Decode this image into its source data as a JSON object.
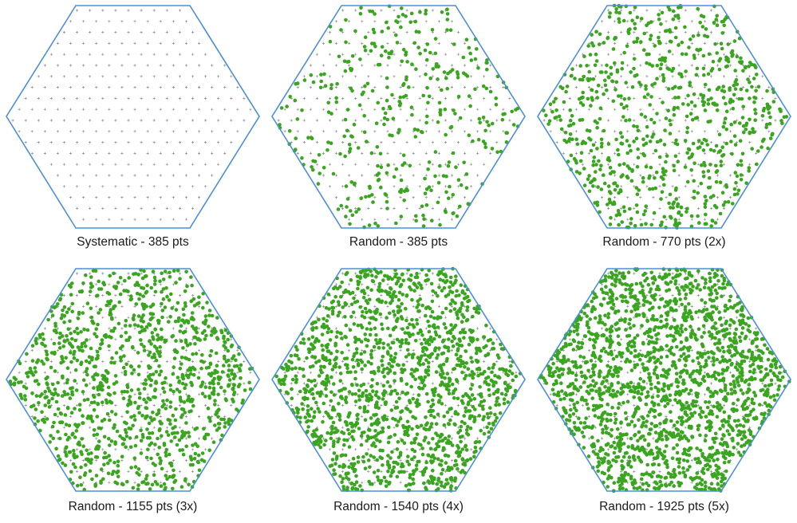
{
  "colors": {
    "hexagon_outline": "#4a8fdb",
    "random_point": "#3aa51f",
    "systematic_cross": "#8a8a8a"
  },
  "panels": [
    {
      "caption": "Systematic - 385 pts",
      "kind": "systematic",
      "points": 385
    },
    {
      "caption": "Random - 385 pts",
      "kind": "random",
      "points": 385
    },
    {
      "caption": "Random - 770 pts (2x)",
      "kind": "random",
      "points": 770
    },
    {
      "caption": "Random - 1155 pts (3x)",
      "kind": "random",
      "points": 1155
    },
    {
      "caption": "Random - 1540 pts (4x)",
      "kind": "random",
      "points": 1540
    },
    {
      "caption": "Random - 1925 pts (5x)",
      "kind": "random",
      "points": 1925
    }
  ]
}
